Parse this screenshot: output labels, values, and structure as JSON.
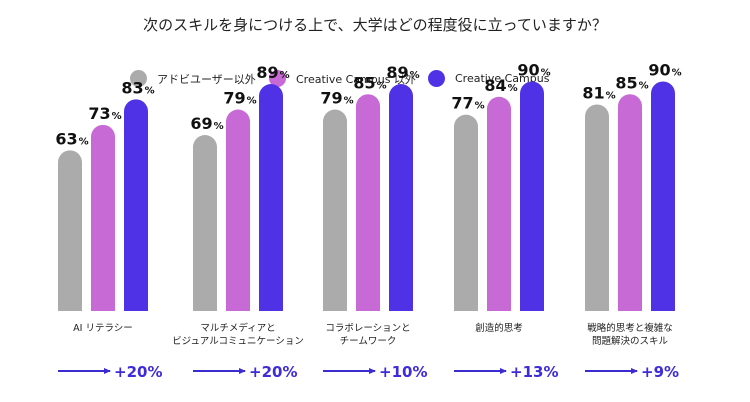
{
  "title": "次のスキルを身につける上で、大学はどの程度役に立っていますか？",
  "colors": {
    "series": [
      "#ababab",
      "#c86ad6",
      "#5032e6"
    ],
    "arrow": "#3b2bd0"
  },
  "legend_position": "top",
  "chart_data": {
    "type": "bar",
    "title": "次のスキルを身につける上で、大学はどの程度役に立っていますか？",
    "unit": "%",
    "ylim": [
      0,
      100
    ],
    "grid": false,
    "categories": [
      [
        "AI リテラシー"
      ],
      [
        "マルチメディアと",
        "ビジュアルコミュニケーション"
      ],
      [
        "コラボレーションと",
        "チームワーク"
      ],
      [
        "創造的思考"
      ],
      [
        "戦略的思考と複雑な",
        "問題解決のスキル"
      ]
    ],
    "series": [
      {
        "name": "アドビユーザー以外",
        "values": [
          63,
          69,
          79,
          77,
          81
        ]
      },
      {
        "name": "Creative Campus 以外",
        "values": [
          73,
          79,
          85,
          84,
          85
        ]
      },
      {
        "name": "Creative Campus",
        "values": [
          83,
          89,
          89,
          90,
          90
        ]
      }
    ],
    "deltas": [
      "+20%",
      "+20%",
      "+10%",
      "+13%",
      "+9%"
    ]
  }
}
